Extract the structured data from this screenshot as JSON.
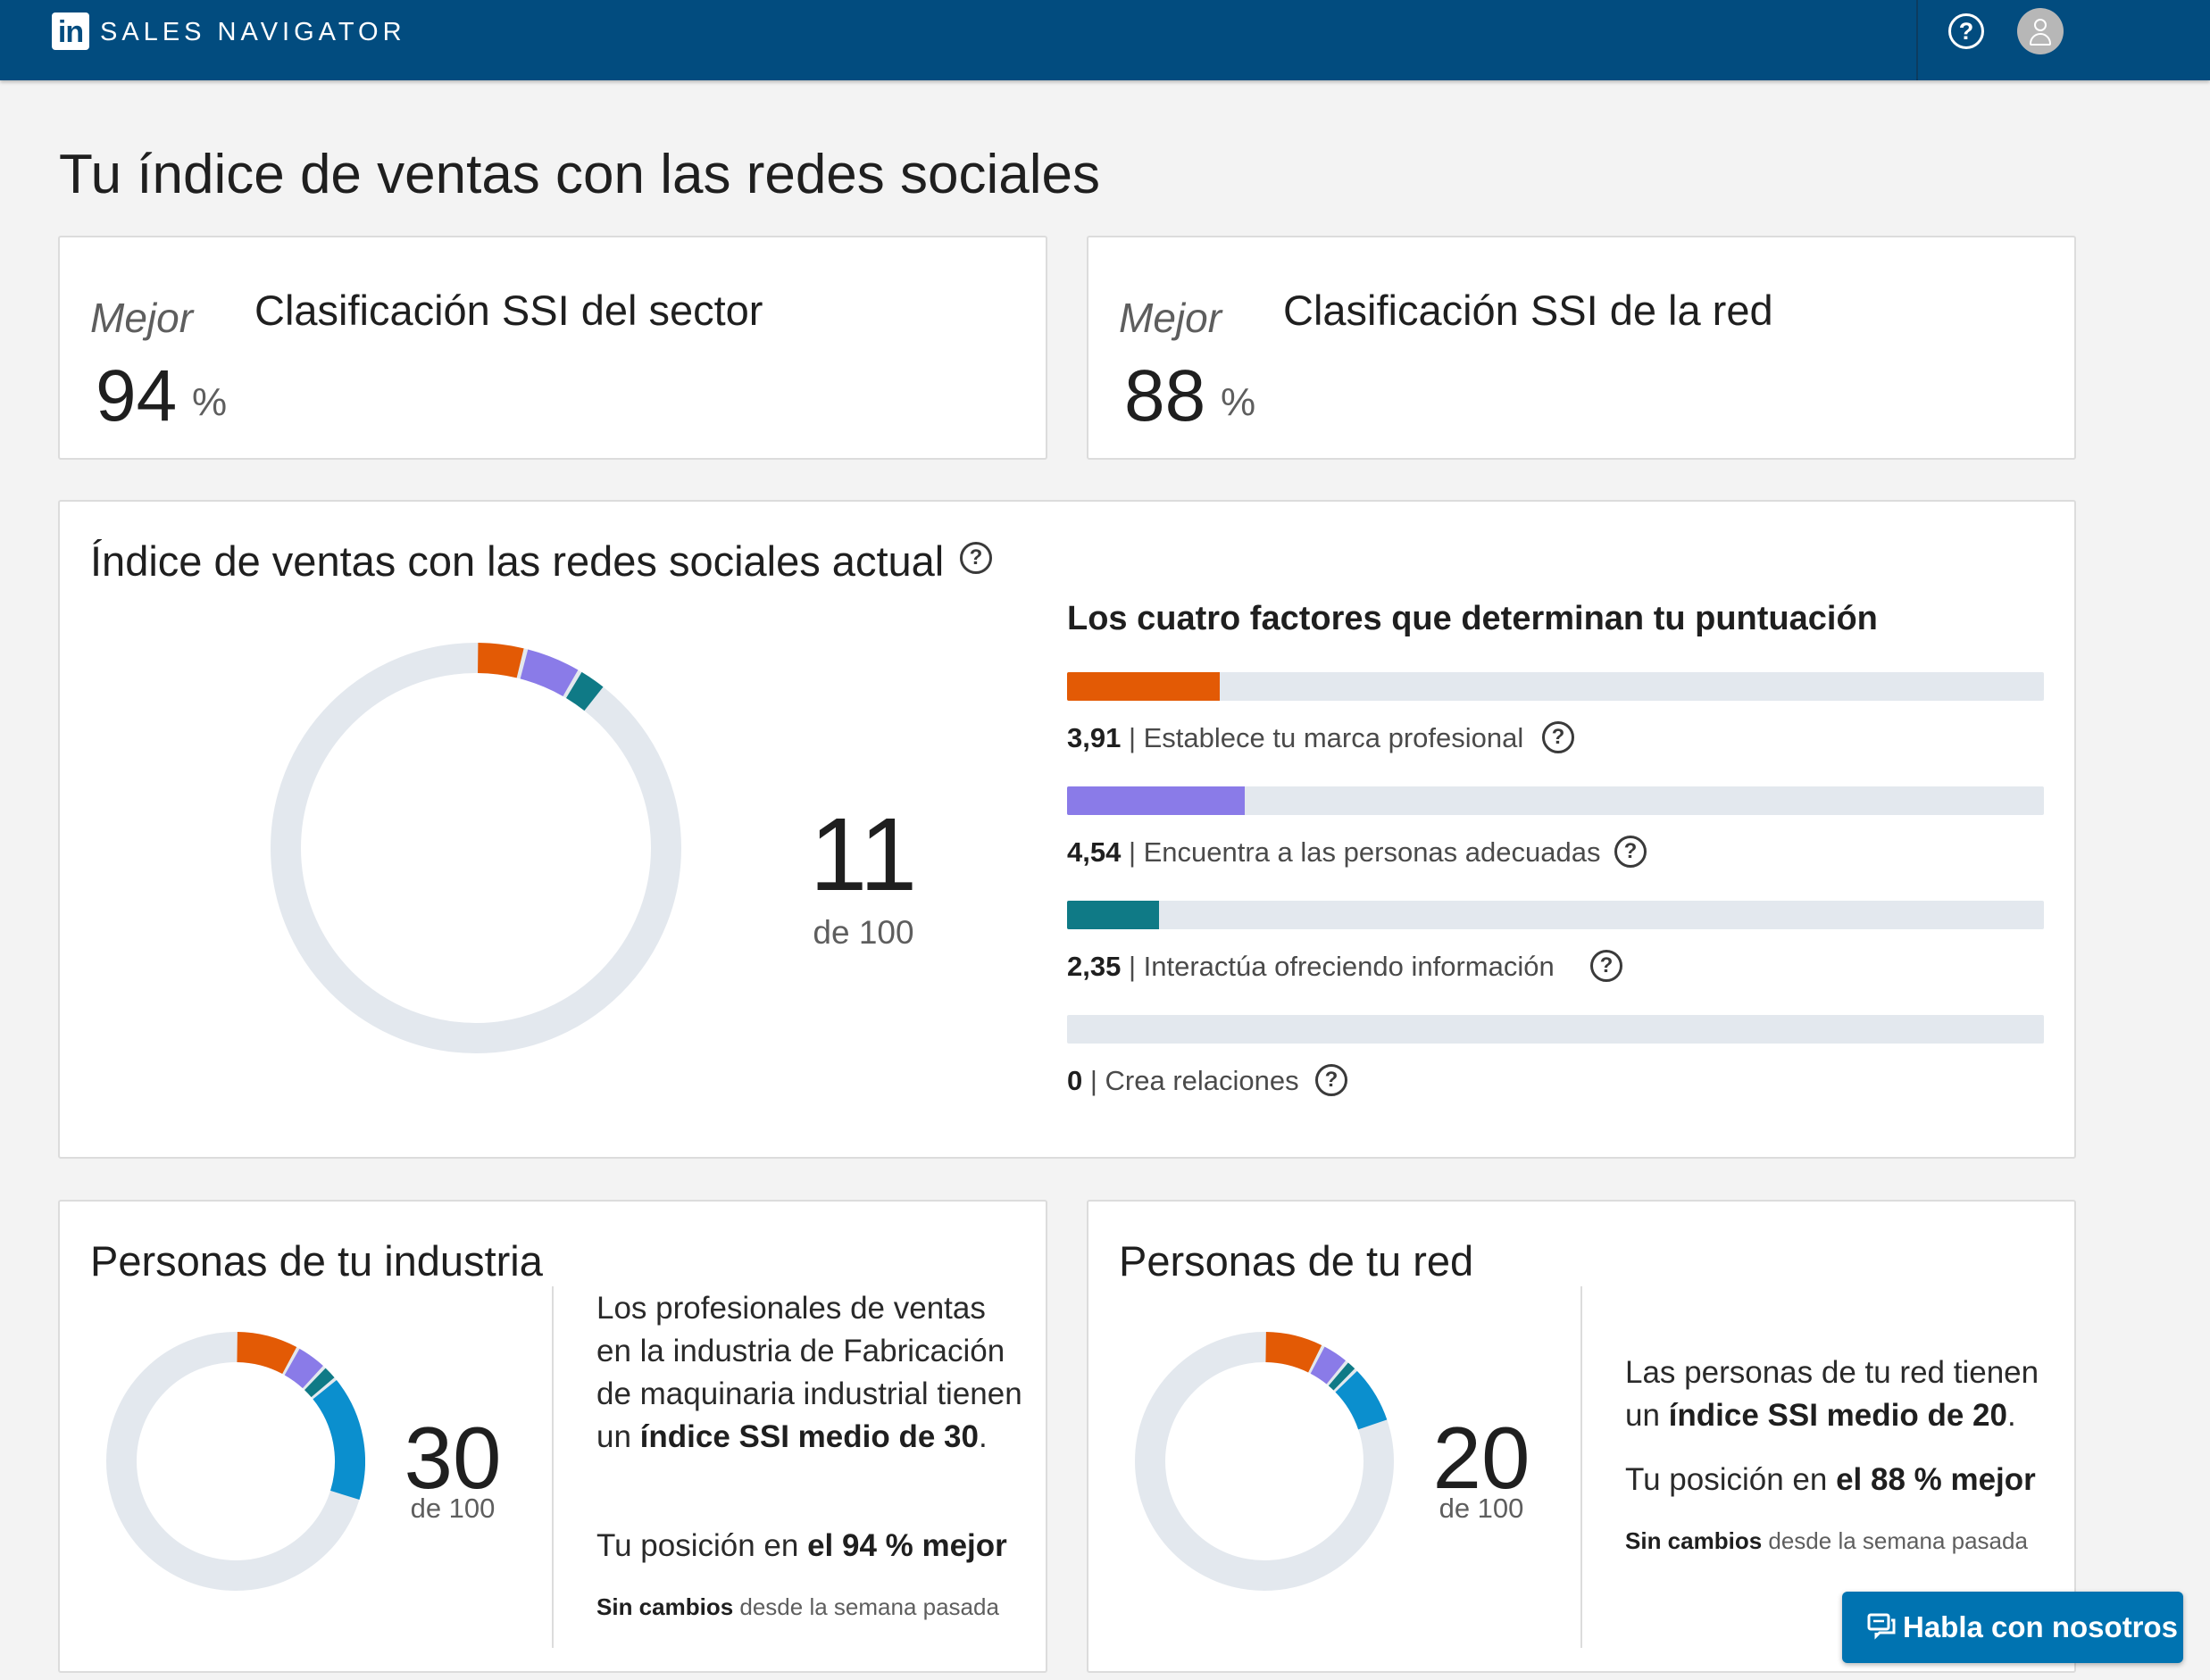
{
  "topbar": {
    "logo_text": "in",
    "brand": "SALES NAVIGATOR",
    "help_icon": "help-icon",
    "avatar_icon": "user-avatar-icon",
    "bg_color": "#024c7f"
  },
  "page_title": "Tu índice de ventas con las redes sociales",
  "industry_rank": {
    "mejor": "Mejor",
    "value": "94",
    "pct": "%",
    "label": "Clasificación SSI del sector"
  },
  "network_rank": {
    "mejor": "Mejor",
    "value": "88",
    "pct": "%",
    "label": "Clasificación SSI de la red"
  },
  "current_ssi": {
    "title": "Índice de ventas con las redes sociales actual",
    "score": "11",
    "score_suffix": "de 100",
    "factors_heading": "Los cuatro factores que determinan tu puntuación",
    "factors": [
      {
        "score": "3,91",
        "label": "Establece tu marca profesional",
        "value": 3.91,
        "max": 25,
        "color": "#e35a05"
      },
      {
        "score": "4,54",
        "label": "Encuentra a las personas adecuadas",
        "value": 4.54,
        "max": 25,
        "color": "#8a7be8"
      },
      {
        "score": "2,35",
        "label": "Interactúa ofreciendo información",
        "value": 2.35,
        "max": 25,
        "color": "#0f7a86"
      },
      {
        "score": "0",
        "label": "Crea relaciones",
        "value": 0,
        "max": 25,
        "color": "#0b8fce"
      }
    ]
  },
  "industry": {
    "title": "Personas de tu industria",
    "score": "30",
    "score_suffix": "de 100",
    "desc_pre": "Los profesionales de ventas en la industria de Fabricación de maquinaria industrial tienen un ",
    "desc_bold": "índice SSI medio de 30",
    "desc_post": ".",
    "pos_pre": "Tu posición en ",
    "pos_bold": "el 94 % mejor",
    "change_bold": "Sin cambios",
    "change_rest": " desde la semana pasada",
    "segments": [
      8,
      4,
      2,
      16
    ]
  },
  "network": {
    "title": "Personas de tu red",
    "score": "20",
    "score_suffix": "de 100",
    "desc_pre": "Las personas de tu red tienen un ",
    "desc_bold": "índice SSI medio de 20",
    "desc_post": ".",
    "pos_pre": "Tu posición en ",
    "pos_bold": "el 88 % mejor",
    "change_bold": "Sin cambios",
    "change_rest": " desde la semana pasada",
    "segments": [
      7.5,
      3.5,
      1.5,
      7.5
    ]
  },
  "chat": {
    "label": "Habla con nosotros",
    "icon": "chat-bubbles-icon"
  },
  "colors": {
    "track": "#e3e8ee",
    "seg1": "#e35a05",
    "seg2": "#8a7be8",
    "seg3": "#0f7a86",
    "seg4": "#0b8fce"
  }
}
